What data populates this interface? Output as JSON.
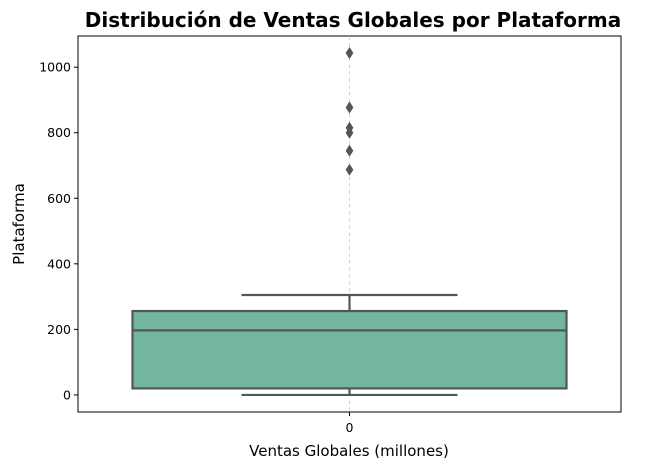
{
  "chart_data": {
    "type": "boxplot",
    "title": "Distribución de Ventas Globales por Plataforma",
    "xlabel": "Ventas Globales (millones)",
    "ylabel": "Plataforma",
    "categories": [
      "0"
    ],
    "ylim": [
      -52,
      1095
    ],
    "yticks": [
      0,
      200,
      400,
      600,
      800,
      1000
    ],
    "ytick_labels": [
      "0",
      "200",
      "400",
      "600",
      "800",
      "1000"
    ],
    "box": {
      "whisker_low": 0,
      "q1": 20,
      "median": 197,
      "q3": 256,
      "whisker_high": 305
    },
    "outliers": [
      687,
      745,
      800,
      815,
      877,
      1043
    ],
    "grid": "x-dashed",
    "colors": {
      "box_fill": "#72b6a1",
      "box_line": "#555555",
      "outlier": "#555555",
      "grid": "#cccccc",
      "axes": "#000000"
    }
  }
}
